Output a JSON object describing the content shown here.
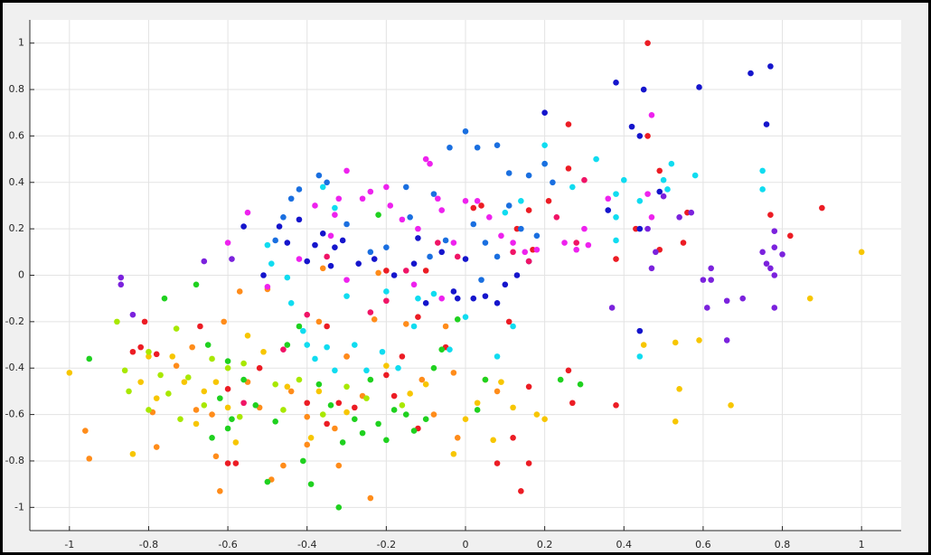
{
  "chart_data": {
    "type": "scatter",
    "xlim": [
      -1.1,
      1.1
    ],
    "ylim": [
      -1.1,
      1.1
    ],
    "xticks": [
      -1,
      -0.8,
      -0.6,
      -0.4,
      -0.2,
      0,
      0.2,
      0.4,
      0.6,
      0.8,
      1
    ],
    "yticks": [
      -1,
      -0.8,
      -0.6,
      -0.4,
      -0.2,
      0,
      0.2,
      0.4,
      0.6,
      0.8,
      1
    ],
    "grid": true,
    "series": [
      {
        "color": "#ec1c24",
        "x": [
          0.46,
          0.46,
          0.26,
          0.9,
          0.82,
          0.77,
          0.56,
          0.55,
          0.49,
          0.49,
          0.38,
          0.43,
          0.21,
          0.26,
          0.16,
          0.13,
          0.04,
          0.02,
          -0.1,
          -0.2,
          -0.12,
          -0.3,
          -0.32,
          -0.35,
          -0.35,
          -0.52,
          -0.6,
          -0.58,
          -0.6,
          -0.84,
          -0.81,
          -0.82,
          -0.78,
          -0.67,
          0.11,
          0.08,
          0.12,
          0.14,
          0.16,
          0.16,
          0.26,
          0.27,
          0.38,
          -0.16,
          -0.2,
          -0.12,
          -0.18,
          -0.28,
          -0.4,
          0.17,
          -0.05
        ],
        "values": [
          1.0,
          0.6,
          0.65,
          0.29,
          0.17,
          0.26,
          0.27,
          0.14,
          0.45,
          0.11,
          0.07,
          0.2,
          0.32,
          0.46,
          0.28,
          0.2,
          0.3,
          0.29,
          0.02,
          0.02,
          -0.18,
          -0.35,
          -0.55,
          -0.64,
          -0.22,
          -0.4,
          -0.49,
          -0.81,
          -0.81,
          -0.33,
          -0.2,
          -0.31,
          -0.34,
          -0.22,
          -0.2,
          -0.81,
          -0.7,
          -0.93,
          -0.81,
          -0.48,
          -0.41,
          -0.55,
          -0.56,
          -0.35,
          -0.43,
          -0.66,
          -0.52,
          -0.57,
          -0.55,
          0.11,
          -0.31
        ]
      },
      {
        "color": "#ff8c1a",
        "x": [
          -0.96,
          -0.95,
          -0.79,
          -0.78,
          -0.73,
          -0.69,
          -0.68,
          -0.64,
          -0.62,
          -0.63,
          -0.61,
          -0.57,
          -0.55,
          -0.52,
          -0.49,
          -0.46,
          -0.5,
          -0.44,
          -0.4,
          -0.37,
          -0.36,
          -0.32,
          -0.3,
          -0.24,
          -0.23,
          -0.26,
          -0.22,
          -0.15,
          -0.11,
          -0.05,
          -0.02,
          -0.03,
          0.08,
          -0.33,
          -0.4,
          -0.08
        ],
        "values": [
          -0.67,
          -0.79,
          -0.59,
          -0.74,
          -0.39,
          -0.31,
          -0.58,
          -0.6,
          -0.93,
          -0.78,
          -0.2,
          -0.07,
          -0.46,
          -0.57,
          -0.88,
          -0.82,
          -0.06,
          -0.5,
          -0.61,
          -0.2,
          0.03,
          -0.82,
          -0.35,
          -0.96,
          -0.19,
          -0.52,
          0.01,
          -0.21,
          -0.45,
          -0.22,
          -0.7,
          -0.42,
          -0.5,
          -0.66,
          -0.73,
          -0.6
        ]
      },
      {
        "color": "#f7c600",
        "x": [
          -1.0,
          -0.84,
          -0.8,
          -0.74,
          -0.71,
          -0.68,
          -0.66,
          -0.63,
          -0.6,
          -0.58,
          -0.55,
          -0.51,
          -0.45,
          -0.39,
          -0.37,
          -0.3,
          -0.2,
          -0.14,
          -0.1,
          -0.03,
          0.0,
          0.03,
          0.05,
          0.07,
          0.09,
          0.12,
          0.18,
          0.2,
          0.45,
          0.53,
          0.54,
          0.53,
          0.59,
          0.67,
          0.87,
          1.0,
          -0.78,
          -0.82
        ],
        "values": [
          -0.42,
          -0.77,
          -0.35,
          -0.35,
          -0.46,
          -0.64,
          -0.5,
          -0.46,
          -0.57,
          -0.72,
          -0.26,
          -0.33,
          -0.48,
          -0.7,
          -0.5,
          -0.59,
          -0.39,
          -0.51,
          -0.47,
          -0.77,
          -0.62,
          -0.55,
          -0.45,
          -0.71,
          -0.46,
          -0.57,
          -0.6,
          -0.62,
          -0.3,
          -0.29,
          -0.49,
          -0.63,
          -0.28,
          -0.56,
          -0.1,
          0.1,
          -0.53,
          -0.46
        ]
      },
      {
        "color": "#a8e800",
        "x": [
          -0.88,
          -0.86,
          -0.85,
          -0.8,
          -0.77,
          -0.75,
          -0.72,
          -0.7,
          -0.66,
          -0.64,
          -0.6,
          -0.56,
          -0.48,
          -0.42,
          -0.36,
          -0.3,
          -0.25,
          -0.16,
          -0.8,
          -0.73,
          -0.57,
          -0.46
        ],
        "values": [
          -0.2,
          -0.41,
          -0.5,
          -0.58,
          -0.43,
          -0.51,
          -0.62,
          -0.44,
          -0.56,
          -0.36,
          -0.4,
          -0.38,
          -0.47,
          -0.45,
          -0.6,
          -0.48,
          -0.53,
          -0.56,
          -0.33,
          -0.23,
          -0.61,
          -0.58
        ]
      },
      {
        "color": "#1fd11f",
        "x": [
          -0.95,
          -0.76,
          -0.68,
          -0.65,
          -0.62,
          -0.6,
          -0.59,
          -0.56,
          -0.53,
          -0.5,
          -0.48,
          -0.45,
          -0.42,
          -0.41,
          -0.39,
          -0.37,
          -0.34,
          -0.32,
          -0.31,
          -0.28,
          -0.26,
          -0.24,
          -0.22,
          -0.2,
          -0.18,
          -0.15,
          -0.13,
          -0.1,
          -0.08,
          -0.06,
          -0.02,
          0.03,
          0.05,
          0.24,
          0.29,
          -0.6,
          -0.64,
          -0.22
        ],
        "values": [
          -0.36,
          -0.1,
          -0.04,
          -0.3,
          -0.53,
          -0.66,
          -0.62,
          -0.45,
          -0.56,
          -0.89,
          -0.63,
          -0.3,
          -0.22,
          -0.8,
          -0.9,
          -0.47,
          -0.56,
          -1.0,
          -0.72,
          -0.62,
          -0.68,
          -0.45,
          -0.64,
          -0.71,
          -0.58,
          -0.6,
          -0.67,
          -0.62,
          -0.4,
          -0.32,
          -0.19,
          -0.58,
          -0.45,
          -0.45,
          -0.47,
          -0.37,
          -0.7,
          0.26
        ]
      },
      {
        "color": "#10dcf0",
        "x": [
          -0.5,
          -0.49,
          -0.45,
          -0.44,
          -0.41,
          -0.4,
          -0.38,
          -0.35,
          -0.33,
          -0.3,
          -0.28,
          -0.25,
          -0.21,
          -0.17,
          -0.13,
          -0.12,
          -0.08,
          -0.04,
          0.0,
          0.08,
          0.1,
          0.14,
          0.2,
          0.2,
          0.27,
          0.33,
          0.38,
          0.38,
          0.38,
          0.4,
          0.44,
          0.44,
          0.5,
          0.51,
          0.52,
          0.58,
          0.75,
          0.75,
          0.12,
          -0.2,
          -0.36,
          -0.33
        ],
        "values": [
          0.13,
          0.05,
          -0.01,
          -0.12,
          -0.24,
          -0.3,
          -0.36,
          -0.31,
          -0.41,
          -0.09,
          -0.3,
          -0.41,
          -0.33,
          -0.4,
          -0.22,
          -0.1,
          -0.08,
          -0.32,
          -0.18,
          -0.35,
          0.27,
          0.32,
          0.56,
          0.48,
          0.38,
          0.5,
          0.35,
          0.25,
          0.15,
          0.41,
          0.32,
          -0.35,
          0.41,
          0.37,
          0.48,
          0.43,
          0.45,
          0.37,
          -0.22,
          -0.07,
          0.38,
          0.29
        ]
      },
      {
        "color": "#1a6fe0",
        "x": [
          0.0,
          -0.04,
          0.03,
          0.08,
          0.11,
          0.16,
          0.2,
          -0.37,
          -0.35,
          -0.42,
          -0.44,
          -0.3,
          -0.15,
          -0.14,
          -0.08,
          -0.05,
          0.02,
          0.05,
          0.08,
          0.11,
          0.14,
          0.18,
          0.22,
          -0.2,
          -0.24,
          -0.46,
          -0.48,
          0.04,
          -0.09
        ],
        "values": [
          0.62,
          0.55,
          0.55,
          0.56,
          0.44,
          0.43,
          0.48,
          0.43,
          0.4,
          0.37,
          0.33,
          0.22,
          0.38,
          0.25,
          0.35,
          0.15,
          0.22,
          0.14,
          0.08,
          0.3,
          0.2,
          0.17,
          0.4,
          0.12,
          0.1,
          0.25,
          0.15,
          -0.02,
          0.08
        ]
      },
      {
        "color": "#1515cc",
        "x": [
          -0.47,
          -0.45,
          -0.42,
          -0.4,
          -0.38,
          -0.36,
          -0.34,
          -0.33,
          -0.31,
          -0.27,
          -0.23,
          -0.18,
          -0.13,
          -0.12,
          -0.1,
          -0.06,
          -0.03,
          -0.02,
          0.0,
          0.02,
          0.05,
          0.08,
          0.1,
          0.13,
          0.16,
          0.2,
          0.36,
          0.42,
          0.44,
          0.45,
          0.49,
          0.44,
          0.59,
          0.72,
          0.77,
          0.76,
          0.38,
          0.44,
          -0.51,
          -0.56
        ],
        "values": [
          0.21,
          0.14,
          0.24,
          0.06,
          0.13,
          0.18,
          0.04,
          0.12,
          0.15,
          0.05,
          0.07,
          0.0,
          0.05,
          0.16,
          -0.12,
          0.1,
          -0.07,
          -0.1,
          0.07,
          -0.1,
          -0.09,
          -0.12,
          -0.04,
          0.0,
          0.06,
          0.7,
          0.28,
          0.64,
          0.6,
          0.8,
          0.36,
          -0.24,
          0.81,
          0.87,
          0.9,
          0.65,
          0.83,
          0.2,
          0.0,
          0.21
        ]
      },
      {
        "color": "#7b22dd",
        "x": [
          -0.87,
          -0.87,
          -0.84,
          -0.66,
          -0.59,
          0.37,
          0.47,
          0.5,
          0.54,
          0.57,
          0.6,
          0.61,
          0.62,
          0.62,
          0.66,
          0.66,
          0.7,
          0.75,
          0.76,
          0.77,
          0.78,
          0.78,
          0.78,
          0.78,
          0.8,
          0.48,
          0.46
        ],
        "values": [
          -0.01,
          -0.04,
          -0.17,
          0.06,
          0.07,
          -0.14,
          0.03,
          0.34,
          0.25,
          0.27,
          -0.02,
          -0.14,
          0.03,
          -0.02,
          -0.11,
          -0.28,
          -0.1,
          0.1,
          0.05,
          0.03,
          0.19,
          0.12,
          0.0,
          -0.14,
          0.09,
          0.1,
          0.2
        ]
      },
      {
        "color": "#ee22ee",
        "x": [
          -0.6,
          -0.55,
          -0.42,
          -0.38,
          -0.33,
          -0.32,
          -0.3,
          -0.26,
          -0.24,
          -0.2,
          -0.19,
          -0.16,
          -0.12,
          -0.1,
          -0.09,
          -0.07,
          -0.06,
          -0.03,
          0.0,
          0.03,
          0.06,
          0.09,
          0.12,
          0.15,
          0.18,
          0.25,
          0.28,
          0.3,
          0.31,
          0.36,
          0.47,
          0.47,
          0.46,
          -0.13,
          -0.06,
          -0.3,
          -0.34,
          -0.5
        ],
        "values": [
          0.14,
          0.27,
          0.07,
          0.3,
          0.26,
          0.33,
          0.45,
          0.33,
          0.36,
          0.38,
          0.3,
          0.24,
          0.2,
          0.5,
          0.48,
          0.33,
          0.28,
          0.14,
          0.32,
          0.32,
          0.25,
          0.17,
          0.14,
          0.1,
          0.11,
          0.14,
          0.11,
          0.2,
          0.13,
          0.33,
          0.69,
          0.25,
          0.35,
          -0.04,
          -0.1,
          -0.02,
          0.17,
          -0.05
        ]
      },
      {
        "color": "#f01466",
        "x": [
          -0.07,
          -0.02,
          0.12,
          0.16,
          0.23,
          0.28,
          0.3,
          -0.2,
          -0.15,
          -0.24,
          -0.35,
          -0.4,
          -0.46,
          -0.56
        ],
        "values": [
          0.14,
          0.08,
          0.1,
          0.06,
          0.25,
          0.14,
          0.41,
          -0.11,
          0.02,
          -0.16,
          0.08,
          -0.17,
          -0.32,
          -0.55
        ]
      }
    ]
  }
}
